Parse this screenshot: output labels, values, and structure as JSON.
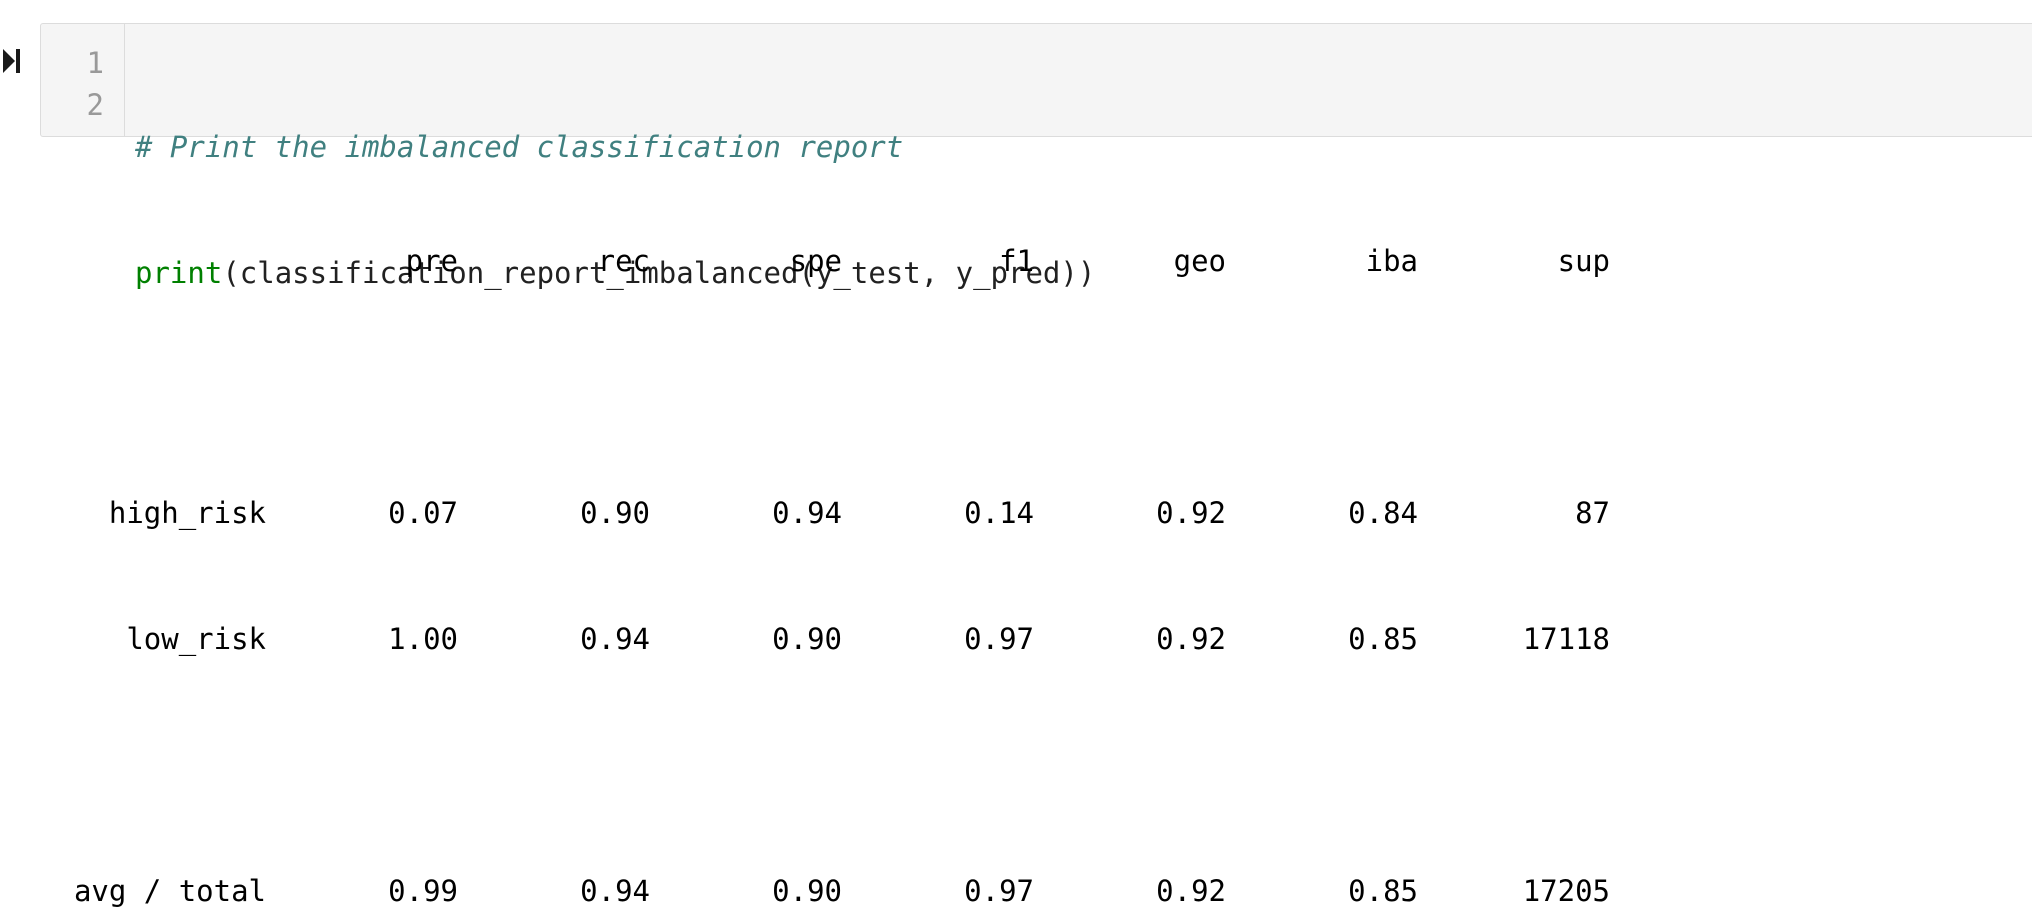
{
  "cell": {
    "line_numbers": [
      "1",
      "2"
    ],
    "code": {
      "line1_comment": "# Print the imbalanced classification report",
      "line2_builtin": "print",
      "line2_rest": "(classification_report_imbalanced(y_test, y_pred))"
    }
  },
  "output": {
    "headers": [
      "pre",
      "rec",
      "spe",
      "f1",
      "geo",
      "iba",
      "sup"
    ],
    "rows": [
      {
        "label": "high_risk",
        "values": [
          "0.07",
          "0.90",
          "0.94",
          "0.14",
          "0.92",
          "0.84",
          "87"
        ]
      },
      {
        "label": "low_risk",
        "values": [
          "1.00",
          "0.94",
          "0.90",
          "0.97",
          "0.92",
          "0.85",
          "17118"
        ]
      }
    ],
    "total": {
      "label": "avg / total",
      "values": [
        "0.99",
        "0.94",
        "0.90",
        "0.97",
        "0.92",
        "0.85",
        "17205"
      ]
    }
  },
  "icons": {
    "run_indicator": "run-cell-icon"
  },
  "colors": {
    "comment": "#408080",
    "builtin": "#008000",
    "cell_background": "#f5f5f5"
  }
}
